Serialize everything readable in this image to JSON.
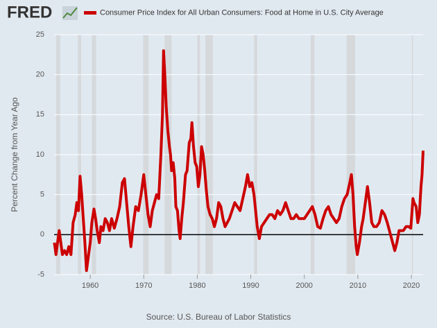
{
  "chart_data": {
    "type": "line",
    "logo": "FRED",
    "ylabel": "Percent Change from Year Ago",
    "source": "Source: U.S. Bureau of Labor Statistics",
    "xlim": [
      1953.25,
      2022.2
    ],
    "xticks": [
      1960,
      1970,
      1980,
      1990,
      2000,
      2010,
      2020
    ],
    "ylim": [
      -5,
      25
    ],
    "yticks": [
      -5,
      0,
      5,
      10,
      15,
      20,
      25
    ],
    "grid": true,
    "recession_color": "#d5d9dc",
    "recessions": [
      [
        1953.6,
        1954.4
      ],
      [
        1957.7,
        1958.3
      ],
      [
        1960.3,
        1961.1
      ],
      [
        1969.9,
        1970.9
      ],
      [
        1973.9,
        1975.2
      ],
      [
        1980.0,
        1980.5
      ],
      [
        1981.5,
        1982.9
      ],
      [
        1990.6,
        1991.2
      ],
      [
        2001.2,
        2001.9
      ],
      [
        2007.9,
        2009.5
      ],
      [
        2020.1,
        2020.3
      ]
    ],
    "x": [
      1953.3,
      1953.6,
      1953.9,
      1954.2,
      1954.5,
      1954.8,
      1955.2,
      1955.6,
      1956.0,
      1956.4,
      1956.8,
      1957.2,
      1957.5,
      1957.8,
      1958.1,
      1958.4,
      1958.7,
      1959.0,
      1959.3,
      1959.6,
      1960.0,
      1960.3,
      1960.7,
      1961.0,
      1961.3,
      1961.7,
      1962.0,
      1962.4,
      1962.8,
      1963.2,
      1963.6,
      1964.0,
      1964.5,
      1965.0,
      1965.5,
      1966.0,
      1966.4,
      1966.8,
      1967.2,
      1967.6,
      1968.0,
      1968.5,
      1969.0,
      1969.5,
      1970.0,
      1970.4,
      1970.8,
      1971.2,
      1971.6,
      1972.0,
      1972.4,
      1972.8,
      1973.2,
      1973.5,
      1973.7,
      1973.9,
      1974.2,
      1974.5,
      1974.8,
      1975.0,
      1975.2,
      1975.5,
      1975.8,
      1976.0,
      1976.3,
      1976.6,
      1976.8,
      1977.1,
      1977.4,
      1977.8,
      1978.1,
      1978.5,
      1978.8,
      1979.0,
      1979.3,
      1979.6,
      1979.9,
      1980.2,
      1980.5,
      1980.8,
      1981.1,
      1981.4,
      1981.7,
      1982.0,
      1982.4,
      1982.8,
      1983.2,
      1983.6,
      1984.0,
      1984.4,
      1984.8,
      1985.2,
      1985.6,
      1986.0,
      1986.5,
      1987.0,
      1987.5,
      1988.0,
      1988.5,
      1989.0,
      1989.4,
      1989.8,
      1990.2,
      1990.6,
      1990.9,
      1991.2,
      1991.6,
      1992.0,
      1992.5,
      1993.0,
      1993.5,
      1994.0,
      1994.5,
      1995.0,
      1995.5,
      1996.0,
      1996.5,
      1997.0,
      1997.5,
      1998.0,
      1998.5,
      1999.0,
      1999.5,
      2000.0,
      2000.5,
      2001.0,
      2001.5,
      2002.0,
      2002.5,
      2003.0,
      2003.5,
      2004.0,
      2004.5,
      2005.0,
      2005.5,
      2006.0,
      2006.5,
      2007.0,
      2007.5,
      2008.0,
      2008.5,
      2008.8,
      2009.1,
      2009.4,
      2009.7,
      2009.9,
      2010.3,
      2010.7,
      2011.0,
      2011.4,
      2011.8,
      2012.2,
      2012.6,
      2013.0,
      2013.5,
      2014.0,
      2014.5,
      2015.0,
      2015.5,
      2015.9,
      2016.3,
      2016.7,
      2016.9,
      2017.3,
      2017.7,
      2018.0,
      2018.5,
      2019.0,
      2019.5,
      2019.9,
      2020.3,
      2020.5,
      2020.9,
      2021.2,
      2021.5,
      2021.8,
      2022.0,
      2022.1,
      2022.2
    ],
    "series": [
      {
        "name": "Consumer Price Index for All Urban Consumers: Food at Home in U.S. City Average",
        "color": "#cc0000",
        "values": [
          -1,
          -2.5,
          -1,
          0.5,
          -1,
          -2.5,
          -2,
          -2.5,
          -1.5,
          -2.5,
          1.5,
          2.5,
          4,
          3,
          7.3,
          5,
          2,
          -1,
          -4.5,
          -3,
          -1,
          1.5,
          3.2,
          2,
          0.5,
          -1,
          1,
          0.5,
          2,
          1.5,
          0.5,
          2,
          0.8,
          2,
          3.5,
          6.5,
          7,
          4,
          1,
          -1.5,
          1,
          3.5,
          3,
          5,
          7.5,
          5,
          2.5,
          1,
          3,
          4,
          5,
          4.5,
          10,
          15,
          23,
          20.5,
          16,
          13,
          11,
          10,
          8,
          9,
          7,
          3.5,
          3,
          0.5,
          -0.5,
          2,
          4,
          7.5,
          8,
          11.5,
          12,
          14,
          11,
          9,
          8.5,
          6,
          7.5,
          11,
          10,
          8,
          5.5,
          3.5,
          2.5,
          2,
          1,
          2,
          4,
          3.5,
          2,
          1,
          1.5,
          2,
          3,
          4,
          3.5,
          3,
          4.5,
          6,
          7.5,
          6,
          6.5,
          5,
          3,
          1,
          -0.5,
          1,
          1.5,
          2,
          2.5,
          2.5,
          2,
          3,
          2.5,
          3,
          4,
          3,
          2,
          2,
          2.5,
          2,
          2,
          2,
          2.5,
          3,
          3.5,
          2.5,
          1,
          0.8,
          2,
          3,
          3.5,
          2.5,
          2,
          1.5,
          2,
          3.5,
          4.5,
          5,
          6.5,
          7.5,
          5,
          1,
          -1.5,
          -2.5,
          -1,
          1,
          2,
          4,
          6,
          4,
          1.5,
          1,
          1,
          1.5,
          3,
          2.5,
          1.5,
          0.5,
          -0.5,
          -1.5,
          -2,
          -1,
          0.5,
          0.5,
          0.5,
          1,
          1,
          0.8,
          4.5,
          4,
          3.5,
          1.5,
          2.5,
          6,
          7.5,
          9,
          10.5
        ]
      }
    ]
  }
}
